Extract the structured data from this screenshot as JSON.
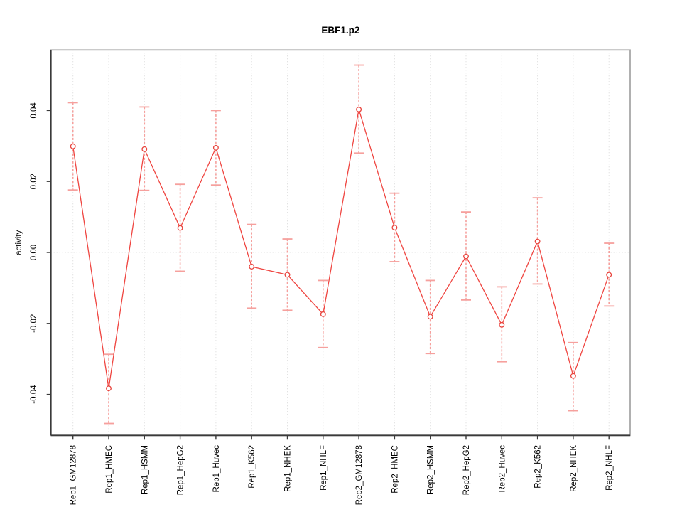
{
  "page": {
    "background": "#ffffff"
  },
  "chart_data": {
    "type": "line",
    "title": "EBF1.p2",
    "xlabel": "",
    "ylabel": "activity",
    "legend": "none",
    "categories": [
      "Rep1_GM12878",
      "Rep1_HMEC",
      "Rep1_HSMM",
      "Rep1_HepG2",
      "Rep1_Huvec",
      "Rep1_K562",
      "Rep1_NHEK",
      "Rep1_NHLF",
      "Rep2_GM12878",
      "Rep2_HMEC",
      "Rep2_HSMM",
      "Rep2_HepG2",
      "Rep2_Huvec",
      "Rep2_K562",
      "Rep2_NHEK",
      "Rep2_NHLF"
    ],
    "series": [
      {
        "name": "activity",
        "values": [
          0.0299,
          -0.0383,
          0.0291,
          0.0069,
          0.0295,
          -0.004,
          -0.0063,
          -0.0174,
          0.0403,
          0.007,
          -0.0181,
          -0.0011,
          -0.0204,
          0.0031,
          -0.0348,
          -0.0063
        ],
        "err_low": [
          0.0176,
          -0.0482,
          0.0175,
          -0.0053,
          0.019,
          -0.0157,
          -0.0163,
          -0.0268,
          0.028,
          -0.0026,
          -0.0285,
          -0.0134,
          -0.0308,
          -0.0089,
          -0.0446,
          -0.0151
        ],
        "err_high": [
          0.0422,
          -0.0287,
          0.041,
          0.0192,
          0.04,
          0.0079,
          0.0038,
          -0.0079,
          0.0528,
          0.0167,
          -0.0079,
          0.0114,
          -0.0097,
          0.0154,
          -0.0254,
          0.0026
        ]
      }
    ],
    "ytick_labels": [
      "0.04",
      "0.02",
      "0.00",
      "-0.02",
      "-0.04"
    ],
    "ytick_values": [
      0.04,
      0.02,
      0,
      -0.02,
      -0.04
    ],
    "ylim": [
      -0.0517,
      0.0571
    ],
    "grid": {
      "vertical_at_each_category": true,
      "horizontal_at_zero": true,
      "style": "dotted"
    },
    "colors": {
      "line": "#ef4540",
      "point": "#e8433c",
      "error_bar": "#f6a09d",
      "grid": "#d8d8d8",
      "box": "#a8a8a8",
      "axis": "#3a3a3a",
      "text": "#000000",
      "background": "#ffffff"
    }
  }
}
